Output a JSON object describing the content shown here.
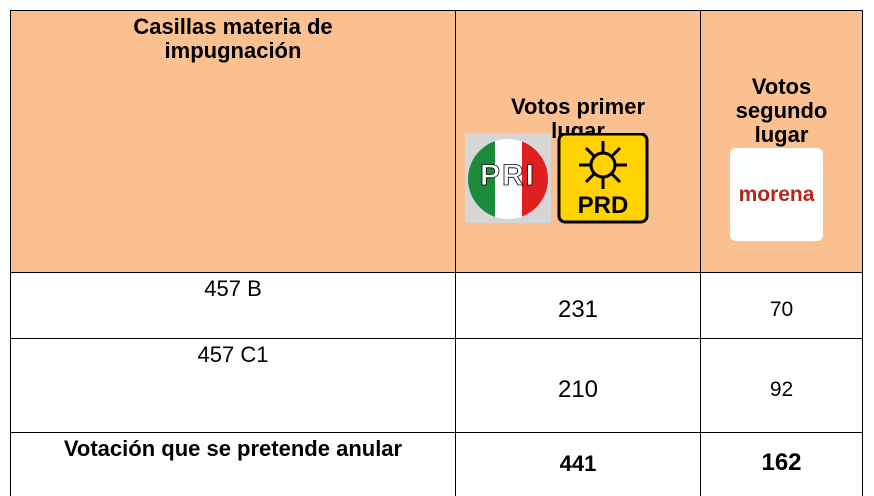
{
  "table": {
    "header": [
      "Casillas materia de impugnación",
      "Votos primer lugar",
      "Votos segundo lugar"
    ],
    "logos": {
      "first": [
        "PRI",
        "PRD"
      ],
      "second": "morena"
    },
    "rows": [
      [
        "457 B",
        "231",
        "70"
      ],
      [
        "457 C1",
        "210",
        "92"
      ],
      [
        "Votación que se pretende anular",
        "441",
        "162"
      ]
    ]
  }
}
